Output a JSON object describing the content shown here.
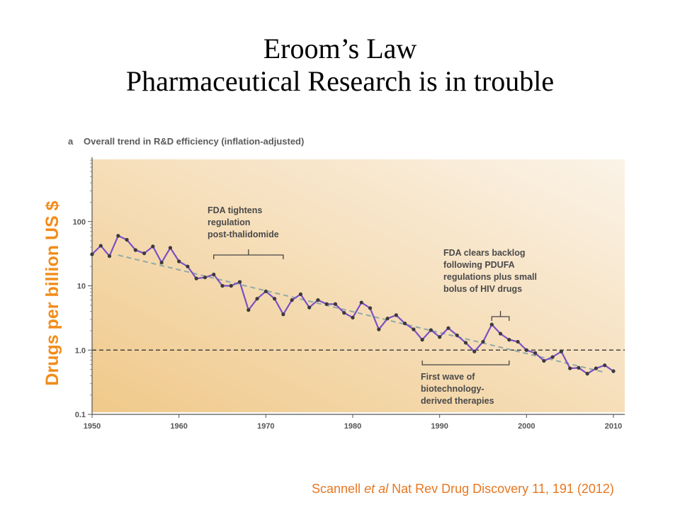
{
  "slide": {
    "title_line1": "Eroom’s Law",
    "title_line2": "Pharmaceutical Research is in trouble",
    "citation": {
      "authors": "Scannell ",
      "etal": "et al",
      "rest": " Nat Rev Drug Discovery 11, 191 (2012)"
    }
  },
  "colors": {
    "series_line": "#7b4fc4",
    "marker": "#3a3a3a",
    "trend": "#8faaa6",
    "ylabel": "#f28c1a",
    "citation": "#e87722",
    "bg_left": "#f0c98a",
    "bg_right": "#fbf3e8"
  },
  "chart_data": {
    "type": "line",
    "panel_label": "a",
    "title": "Overall trend in R&D efficiency (inflation-adjusted)",
    "ylabel": "Drugs per billion US $",
    "xlabel": "",
    "y_scale": "log",
    "ylim": [
      0.1,
      1000
    ],
    "xlim": [
      1950,
      2012
    ],
    "y_ticks": [
      0.1,
      1.0,
      10,
      100
    ],
    "y_tick_labels": [
      "0.1",
      "1.0",
      "10",
      "100"
    ],
    "x_ticks": [
      1950,
      1960,
      1970,
      1980,
      1990,
      2000,
      2010
    ],
    "x_tick_labels": [
      "1950",
      "1960",
      "1970",
      "1980",
      "1990",
      "2000",
      "2010"
    ],
    "reference_line": 1.0,
    "trend_line": {
      "x": [
        1953,
        2009
      ],
      "y": [
        30,
        0.45
      ]
    },
    "series": [
      {
        "x": [
          1950,
          1951,
          1952,
          1953,
          1954,
          1955,
          1956,
          1957,
          1958,
          1959,
          1960,
          1961,
          1962,
          1963,
          1964,
          1965,
          1966,
          1967,
          1968,
          1969,
          1970,
          1971,
          1972,
          1973,
          1974,
          1975,
          1976,
          1977,
          1978,
          1979,
          1980,
          1981,
          1982,
          1983,
          1984,
          1985,
          1986,
          1987,
          1988,
          1989,
          1990,
          1991,
          1992,
          1993,
          1994,
          1995,
          1996,
          1997,
          1998,
          1999,
          2000,
          2001,
          2002,
          2003,
          2004,
          2005,
          2006,
          2007,
          2008,
          2009,
          2010
        ],
        "values": [
          31,
          42,
          29,
          60,
          52,
          36,
          32,
          41,
          23,
          39,
          24,
          20,
          13,
          13.5,
          15,
          10,
          10,
          11.5,
          4.2,
          6.3,
          8.2,
          6.3,
          3.6,
          6,
          7.4,
          4.6,
          6,
          5.2,
          5.2,
          3.8,
          3.2,
          5.5,
          4.5,
          2.1,
          3.1,
          3.5,
          2.6,
          2.1,
          1.45,
          2.05,
          1.6,
          2.2,
          1.7,
          1.3,
          0.95,
          1.35,
          2.5,
          1.8,
          1.45,
          1.35,
          1.0,
          0.9,
          0.68,
          0.78,
          0.95,
          0.52,
          0.53,
          0.43,
          0.52,
          0.58,
          0.47
        ]
      }
    ],
    "annotations": [
      {
        "lines": [
          "FDA tightens",
          "regulation",
          "post-thalidomide"
        ],
        "bracket_x": [
          1964,
          1972
        ],
        "position": "above"
      },
      {
        "lines": [
          "FDA clears backlog",
          "following PDUFA",
          "regulations plus small",
          "bolus of HIV drugs"
        ],
        "bracket_x": [
          1996,
          1998
        ],
        "position": "above"
      },
      {
        "lines": [
          "First wave of",
          "biotechnology-",
          "derived therapies"
        ],
        "bracket_x": [
          1988,
          1998
        ],
        "position": "below"
      }
    ]
  }
}
